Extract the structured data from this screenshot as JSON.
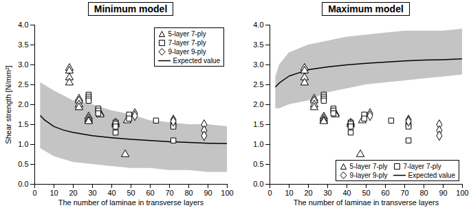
{
  "chart_data": [
    {
      "type": "scatter",
      "title": "Minimum model",
      "xlabel": "The number of laminae in transverse layers",
      "ylabel": "Shear strength [N/mm²]",
      "xlim": [
        0,
        100
      ],
      "xticks": [
        0,
        10,
        20,
        30,
        40,
        50,
        60,
        70,
        80,
        90,
        100
      ],
      "ylim": [
        0,
        4
      ],
      "yticks": [
        {
          "value": 0,
          "label": "0.0"
        },
        {
          "value": 0.5,
          "label": "0.5"
        },
        {
          "value": 1,
          "label": "1.0"
        },
        {
          "value": 1.5,
          "label": "1.5"
        },
        {
          "value": 2,
          "label": "2.0"
        },
        {
          "value": 2.5,
          "label": "2.5"
        },
        {
          "value": 3,
          "label": "3.0"
        },
        {
          "value": 3.5,
          "label": "3.5"
        },
        {
          "value": 4,
          "label": "4.0"
        }
      ],
      "legend": "upper right",
      "band": {
        "color": "#c4c4c4",
        "x": [
          3,
          10,
          20,
          30,
          40,
          50,
          60,
          70,
          80,
          90,
          100
        ],
        "low": [
          0.9,
          0.7,
          0.55,
          0.5,
          0.45,
          0.4,
          0.4,
          0.35,
          0.35,
          0.3,
          0.3
        ],
        "high": [
          2.55,
          2.35,
          2.1,
          2.0,
          1.85,
          1.75,
          1.6,
          1.55,
          1.5,
          1.5,
          1.45
        ]
      },
      "series": [
        {
          "name": "5-layer 7-ply",
          "type": "scatter",
          "marker": "triangle",
          "color": "#000000",
          "x": [
            18,
            18,
            18,
            18,
            23,
            23,
            23,
            23,
            28,
            28,
            28,
            28,
            34,
            34,
            42,
            42,
            47,
            48
          ],
          "values": [
            2.92,
            2.85,
            2.68,
            2.55,
            2.15,
            2.1,
            2.0,
            1.93,
            1.7,
            1.65,
            1.6,
            1.58,
            1.78,
            1.75,
            1.55,
            1.5,
            0.75,
            1.6
          ]
        },
        {
          "name": "7-layer 7-ply",
          "type": "scatter",
          "marker": "square",
          "color": "#000000",
          "x": [
            28,
            28,
            28,
            28,
            33,
            33,
            33,
            42,
            42,
            42,
            42,
            49,
            49,
            63,
            72,
            72,
            72
          ],
          "values": [
            2.25,
            2.2,
            2.15,
            2.1,
            1.9,
            1.85,
            1.78,
            1.55,
            1.52,
            1.45,
            1.3,
            1.75,
            1.65,
            1.6,
            1.5,
            1.45,
            1.1
          ]
        },
        {
          "name": "9-layer 9-ply",
          "type": "scatter",
          "marker": "diamond",
          "color": "#000000",
          "x": [
            52,
            52,
            72,
            72,
            88,
            88,
            88
          ],
          "values": [
            1.78,
            1.72,
            1.62,
            1.58,
            1.5,
            1.35,
            1.22
          ]
        },
        {
          "name": "Expected value",
          "type": "line",
          "line_style": "solid",
          "color": "#000000",
          "x": [
            3,
            5,
            10,
            15,
            20,
            30,
            40,
            50,
            60,
            70,
            80,
            90,
            100
          ],
          "values": [
            1.72,
            1.62,
            1.45,
            1.36,
            1.3,
            1.22,
            1.17,
            1.13,
            1.1,
            1.07,
            1.05,
            1.03,
            1.02
          ]
        }
      ]
    },
    {
      "type": "scatter",
      "title": "Maximum model",
      "xlabel": "The number of laminae in transverse layers",
      "xlim": [
        0,
        100
      ],
      "xticks": [
        0,
        10,
        20,
        30,
        40,
        50,
        60,
        70,
        80,
        90,
        100
      ],
      "ylim": [
        0,
        4
      ],
      "yticks": [
        {
          "value": 0,
          "label": "0.0"
        },
        {
          "value": 0.5,
          "label": "0.5"
        },
        {
          "value": 1,
          "label": "1.0"
        },
        {
          "value": 1.5,
          "label": "1.5"
        },
        {
          "value": 2,
          "label": "2.0"
        },
        {
          "value": 2.5,
          "label": "2.5"
        },
        {
          "value": 3,
          "label": "3.0"
        },
        {
          "value": 3.5,
          "label": "3.5"
        },
        {
          "value": 4,
          "label": "4.0"
        }
      ],
      "legend": "lower right",
      "band": {
        "color": "#c4c4c4",
        "x": [
          3,
          5,
          10,
          20,
          30,
          40,
          50,
          60,
          70,
          80,
          90,
          100
        ],
        "low": [
          1.9,
          1.9,
          2.0,
          2.1,
          2.3,
          2.4,
          2.5,
          2.55,
          2.6,
          2.65,
          2.7,
          2.75
        ],
        "high": [
          2.7,
          3.0,
          3.3,
          3.5,
          3.6,
          3.7,
          3.75,
          3.8,
          3.85,
          3.85,
          3.85,
          3.9
        ]
      },
      "series": [
        {
          "name": "5-layer 7-ply",
          "type": "scatter",
          "marker": "triangle",
          "color": "#000000",
          "x": [
            18,
            18,
            18,
            18,
            23,
            23,
            23,
            23,
            28,
            28,
            28,
            28,
            34,
            34,
            42,
            42,
            47,
            48
          ],
          "values": [
            2.92,
            2.85,
            2.68,
            2.55,
            2.15,
            2.1,
            2.0,
            1.93,
            1.7,
            1.65,
            1.6,
            1.58,
            1.78,
            1.75,
            1.55,
            1.5,
            0.75,
            1.6
          ]
        },
        {
          "name": "7-layer 7-ply",
          "type": "scatter",
          "marker": "square",
          "color": "#000000",
          "x": [
            28,
            28,
            28,
            28,
            33,
            33,
            33,
            42,
            42,
            42,
            42,
            49,
            49,
            63,
            72,
            72,
            72
          ],
          "values": [
            2.25,
            2.2,
            2.15,
            2.1,
            1.9,
            1.85,
            1.78,
            1.55,
            1.52,
            1.45,
            1.3,
            1.75,
            1.65,
            1.6,
            1.5,
            1.45,
            1.1
          ]
        },
        {
          "name": "9-layer 9-ply",
          "type": "scatter",
          "marker": "diamond",
          "color": "#000000",
          "x": [
            52,
            52,
            72,
            72,
            88,
            88,
            88
          ],
          "values": [
            1.78,
            1.72,
            1.62,
            1.58,
            1.5,
            1.35,
            1.22
          ]
        },
        {
          "name": "Expected value",
          "type": "line",
          "line_style": "solid",
          "color": "#000000",
          "x": [
            3,
            5,
            10,
            15,
            20,
            30,
            40,
            50,
            60,
            70,
            80,
            90,
            100
          ],
          "values": [
            2.45,
            2.55,
            2.72,
            2.8,
            2.88,
            2.95,
            3.0,
            3.04,
            3.07,
            3.1,
            3.12,
            3.13,
            3.15
          ]
        }
      ]
    }
  ]
}
